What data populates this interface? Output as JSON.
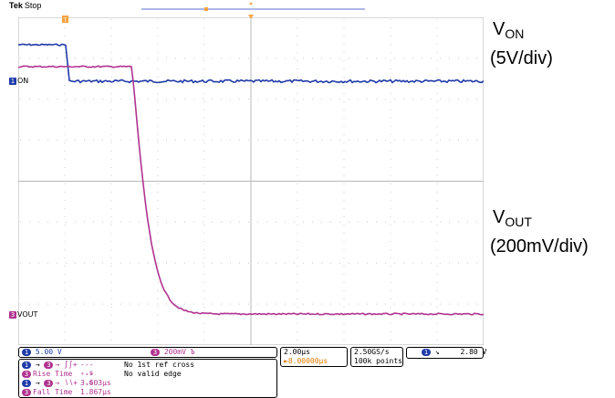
{
  "header": {
    "brand": "Tek",
    "state": "Stop"
  },
  "markers": {
    "trigger_pos": "T",
    "ch1_label": "ON",
    "ch3_label": "VOUT",
    "ch1_num": "1",
    "ch3_num": "3"
  },
  "labels": {
    "von_main": "V",
    "von_sub": "ON",
    "von_scale": "(5V/div)",
    "vout_main": "V",
    "vout_sub": "OUT",
    "vout_scale": "(200mV/div)"
  },
  "status": {
    "ch1_scale": "5.00 V",
    "ch3_scale": "200mV",
    "ch3_bw": "Ъ",
    "timebase": "2.00µs",
    "trig_offset": "►8.00000µs",
    "sample_rate": "2.50GS/s",
    "record": "100k points",
    "trig_level": "2.80 V",
    "trig_slope": "↘"
  },
  "measurements": [
    {
      "badge": "1",
      "badge2": "3",
      "name": "→ ∫∫+",
      "value": "----.s",
      "note": "No 1st ref cross"
    },
    {
      "badge": "3",
      "name": "Rise Time",
      "value": "----.s",
      "note": "No valid edge"
    },
    {
      "badge": "1",
      "badge2": "3",
      "name": "→ ∖∖+",
      "value": "3.603µs",
      "note": ""
    },
    {
      "badge": "3",
      "name": "Fall Time",
      "value": "1.867µs",
      "note": ""
    }
  ],
  "colors": {
    "ch1": "#1f3aa8",
    "ch3": "#b0338f",
    "trigger": "#f4a340",
    "grid": "#c8c8c8"
  }
}
